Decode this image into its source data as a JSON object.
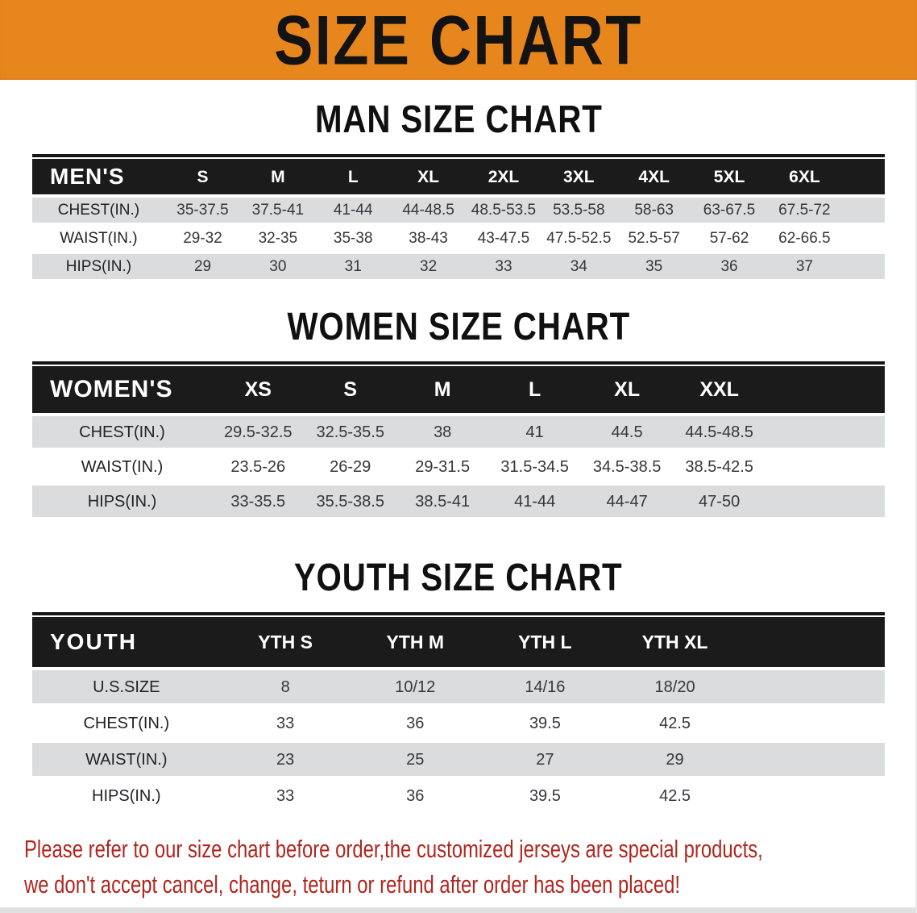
{
  "banner": {
    "title": "SIZE CHART"
  },
  "colors": {
    "banner_bg": "#E8861E",
    "table_header_bg": "#1B1B1B",
    "row_stripe": "#DBDCDD",
    "notice_text": "#B0261F"
  },
  "sections": [
    {
      "heading": "MAN SIZE CHART",
      "table": {
        "header": [
          "MEN'S",
          "S",
          "M",
          "L",
          "XL",
          "2XL",
          "3XL",
          "4XL",
          "5XL",
          "6XL"
        ],
        "rows": [
          {
            "label": "CHEST(IN.)",
            "values": [
              "35-37.5",
              "37.5-41",
              "41-44",
              "44-48.5",
              "48.5-53.5",
              "53.5-58",
              "58-63",
              "63-67.5",
              "67.5-72"
            ]
          },
          {
            "label": "WAIST(IN.)",
            "values": [
              "29-32",
              "32-35",
              "35-38",
              "38-43",
              "43-47.5",
              "47.5-52.5",
              "52.5-57",
              "57-62",
              "62-66.5"
            ]
          },
          {
            "label": "HIPS(IN.)",
            "values": [
              "29",
              "30",
              "31",
              "32",
              "33",
              "34",
              "35",
              "36",
              "37"
            ]
          }
        ]
      }
    },
    {
      "heading": "WOMEN SIZE CHART",
      "table": {
        "header": [
          "WOMEN'S",
          "XS",
          "S",
          "M",
          "L",
          "XL",
          "XXL"
        ],
        "rows": [
          {
            "label": "CHEST(IN.)",
            "values": [
              "29.5-32.5",
              "32.5-35.5",
              "38",
              "41",
              "44.5",
              "44.5-48.5"
            ]
          },
          {
            "label": "WAIST(IN.)",
            "values": [
              "23.5-26",
              "26-29",
              "29-31.5",
              "31.5-34.5",
              "34.5-38.5",
              "38.5-42.5"
            ]
          },
          {
            "label": "HIPS(IN.)",
            "values": [
              "33-35.5",
              "35.5-38.5",
              "38.5-41",
              "41-44",
              "44-47",
              "47-50"
            ]
          }
        ]
      }
    },
    {
      "heading": "YOUTH SIZE CHART",
      "table": {
        "header": [
          "YOUTH",
          "YTH S",
          "YTH M",
          "YTH L",
          "YTH XL"
        ],
        "rows": [
          {
            "label": "U.S.SIZE",
            "values": [
              "8",
              "10/12",
              "14/16",
              "18/20"
            ]
          },
          {
            "label": "CHEST(IN.)",
            "values": [
              "33",
              "36",
              "39.5",
              "42.5"
            ]
          },
          {
            "label": "WAIST(IN.)",
            "values": [
              "23",
              "25",
              "27",
              "29"
            ]
          },
          {
            "label": "HIPS(IN.)",
            "values": [
              "33",
              "36",
              "39.5",
              "42.5"
            ]
          }
        ]
      }
    }
  ],
  "footer": {
    "line1": "Please refer to our size chart before order,the customized jerseys are special products,",
    "line2": "we don't accept cancel, change, teturn or refund after order has been placed!"
  }
}
